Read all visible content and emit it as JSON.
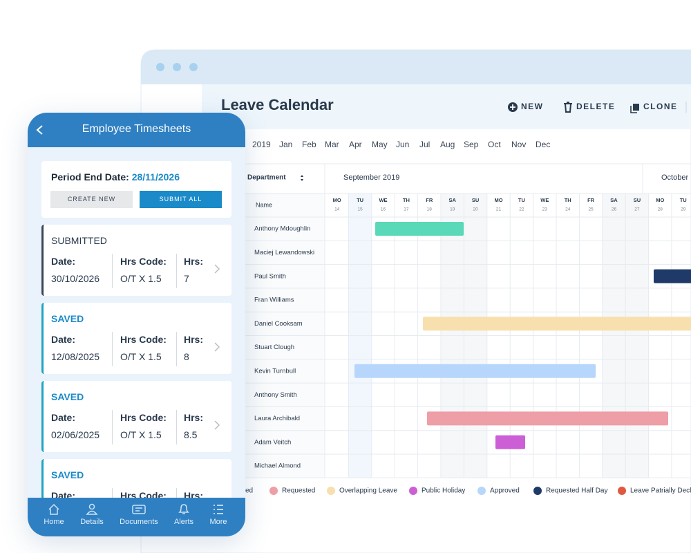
{
  "desktop": {
    "title": "Leave Calendar",
    "actions": [
      "NEW",
      "DELETE",
      "CLONE"
    ],
    "year": "2019",
    "months": [
      "Jan",
      "Feb",
      "Mar",
      "Apr",
      "May",
      "Jun",
      "Jul",
      "Aug",
      "Sep",
      "Oct",
      "Nov",
      "Dec"
    ],
    "department_label": "Department",
    "name_label": "Name",
    "month_headers": [
      "September 2019",
      "October"
    ],
    "days": [
      {
        "weekday": "MO",
        "date": "14"
      },
      {
        "weekday": "TU",
        "date": "15"
      },
      {
        "weekday": "WE",
        "date": "16"
      },
      {
        "weekday": "TH",
        "date": "17"
      },
      {
        "weekday": "FR",
        "date": "18"
      },
      {
        "weekday": "SA",
        "date": "19"
      },
      {
        "weekday": "SU",
        "date": "20"
      },
      {
        "weekday": "MO",
        "date": "21"
      },
      {
        "weekday": "TU",
        "date": "22"
      },
      {
        "weekday": "WE",
        "date": "23"
      },
      {
        "weekday": "TH",
        "date": "24"
      },
      {
        "weekday": "FR",
        "date": "25"
      },
      {
        "weekday": "SA",
        "date": "26"
      },
      {
        "weekday": "SU",
        "date": "27"
      },
      {
        "weekday": "MO",
        "date": "28"
      },
      {
        "weekday": "TU",
        "date": "29"
      }
    ],
    "employees": [
      "Anthony Mdoughlin",
      "Maciej Lewandowski",
      "Paul Smith",
      "Fran Williams",
      "Daniel Cooksam",
      "Stuart Clough",
      "Kevin Turnbull",
      "Anthony Smith",
      "Laura Archibald",
      "Adam Veitch",
      "Michael Almond"
    ],
    "legend": [
      {
        "label": "ed",
        "color": null
      },
      {
        "label": "Requested",
        "color": "#ee9ea6"
      },
      {
        "label": "Overlapping Leave",
        "color": "#f8dfae"
      },
      {
        "label": "Public Holiday",
        "color": "#cc5fd6"
      },
      {
        "label": "Approved",
        "color": "#b7d6fb"
      },
      {
        "label": "Requested Half Day",
        "color": "#1f3a68"
      },
      {
        "label": "Leave Patrially Decl",
        "color": "#e0583f"
      }
    ]
  },
  "mobile": {
    "title": "Employee Timesheets",
    "period_label": "Period End Date:",
    "period_date": "28/11/2026",
    "buttons": [
      "CREATE NEW",
      "SUBMIT ALL"
    ],
    "field_labels": [
      "Date:",
      "Hrs Code:",
      "Hrs:"
    ],
    "entries": [
      {
        "status": "SUBMITTED",
        "date": "30/10/2026",
        "code": "O/T X 1.5",
        "hours": "7"
      },
      {
        "status": "SAVED",
        "date": "12/08/2025",
        "code": "O/T X 1.5",
        "hours": "8"
      },
      {
        "status": "SAVED",
        "date": "02/06/2025",
        "code": "O/T X 1.5",
        "hours": "8.5"
      },
      {
        "status": "SAVED"
      }
    ],
    "nav": [
      "Home",
      "Details",
      "Documents",
      "Alerts",
      "More"
    ]
  }
}
